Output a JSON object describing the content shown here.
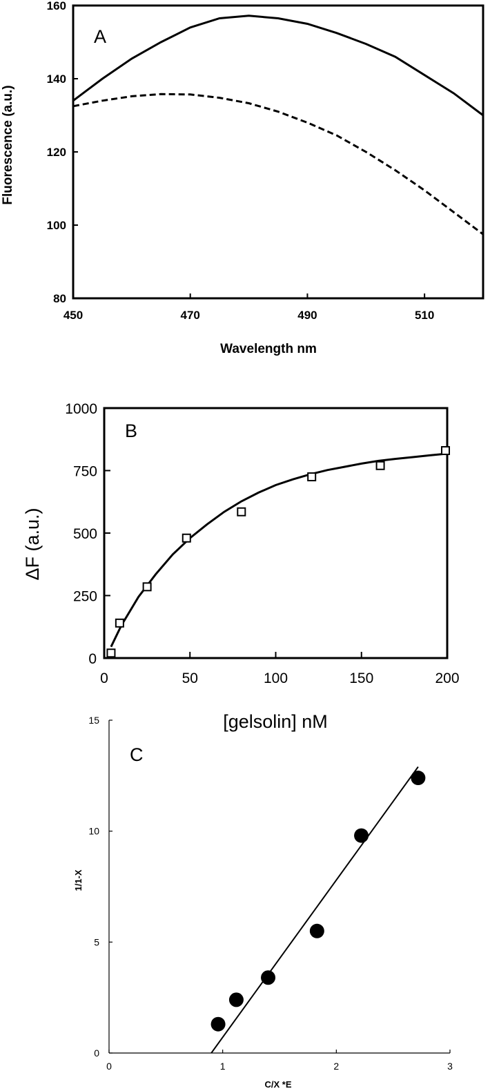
{
  "chart_data": [
    {
      "type": "line",
      "panel": "A",
      "xlabel": "Wavelength  nm",
      "ylabel": "Fluorescence (a.u.)",
      "xlim": [
        450,
        520
      ],
      "ylim": [
        80,
        160
      ],
      "xticks": [
        450,
        470,
        490,
        510
      ],
      "yticks": [
        80,
        100,
        120,
        140,
        160
      ],
      "grid": false,
      "series": [
        {
          "style": "solid",
          "x": [
            450,
            455,
            460,
            465,
            470,
            475,
            480,
            485,
            490,
            495,
            500,
            505,
            510,
            515,
            520
          ],
          "y": [
            134,
            140,
            145.5,
            150,
            154,
            156.5,
            157.2,
            156.5,
            155,
            152.5,
            149.5,
            146,
            141,
            136,
            130
          ]
        },
        {
          "style": "dashed",
          "x": [
            450,
            455,
            460,
            465,
            470,
            475,
            480,
            485,
            490,
            495,
            500,
            505,
            510,
            515,
            520
          ],
          "y": [
            132.5,
            134,
            135.2,
            135.8,
            135.7,
            134.8,
            133.3,
            131,
            128,
            124.5,
            120,
            115,
            109.5,
            103.5,
            97.5
          ]
        }
      ]
    },
    {
      "type": "scatter",
      "panel": "B",
      "xlabel": "[gelsolin]  nM",
      "ylabel": "ΔF (a.u.)",
      "xlim": [
        0,
        200
      ],
      "ylim": [
        0,
        1000
      ],
      "xticks": [
        0,
        50,
        100,
        150,
        200
      ],
      "yticks": [
        0,
        250,
        500,
        750,
        1000
      ],
      "grid": false,
      "points": {
        "marker": "open-square",
        "x": [
          4,
          9,
          25,
          48,
          80,
          121,
          161,
          199
        ],
        "y": [
          20,
          140,
          285,
          480,
          585,
          725,
          770,
          830
        ]
      },
      "fit_curve": {
        "x": [
          4,
          10,
          20,
          30,
          40,
          50,
          60,
          70,
          80,
          90,
          100,
          110,
          120,
          130,
          140,
          150,
          160,
          170,
          180,
          190,
          200
        ],
        "y": [
          45,
          130,
          245,
          335,
          415,
          480,
          535,
          585,
          627,
          662,
          692,
          715,
          735,
          752,
          765,
          778,
          789,
          797,
          804,
          811,
          818
        ]
      }
    },
    {
      "type": "scatter",
      "panel": "C",
      "xlabel": "C/X   *E",
      "ylabel": "1/1-X",
      "xlim": [
        0,
        3
      ],
      "ylim": [
        0,
        15
      ],
      "xticks": [
        0,
        1,
        2,
        3
      ],
      "yticks": [
        0,
        5,
        10,
        15
      ],
      "grid": false,
      "points": {
        "marker": "filled-circle",
        "x": [
          0.96,
          1.12,
          1.4,
          1.83,
          2.22,
          2.72
        ],
        "y": [
          1.3,
          2.4,
          3.4,
          5.5,
          9.8,
          12.4
        ]
      },
      "fit_line": {
        "x": [
          0.9,
          2.72
        ],
        "y": [
          0,
          12.9
        ]
      }
    }
  ]
}
